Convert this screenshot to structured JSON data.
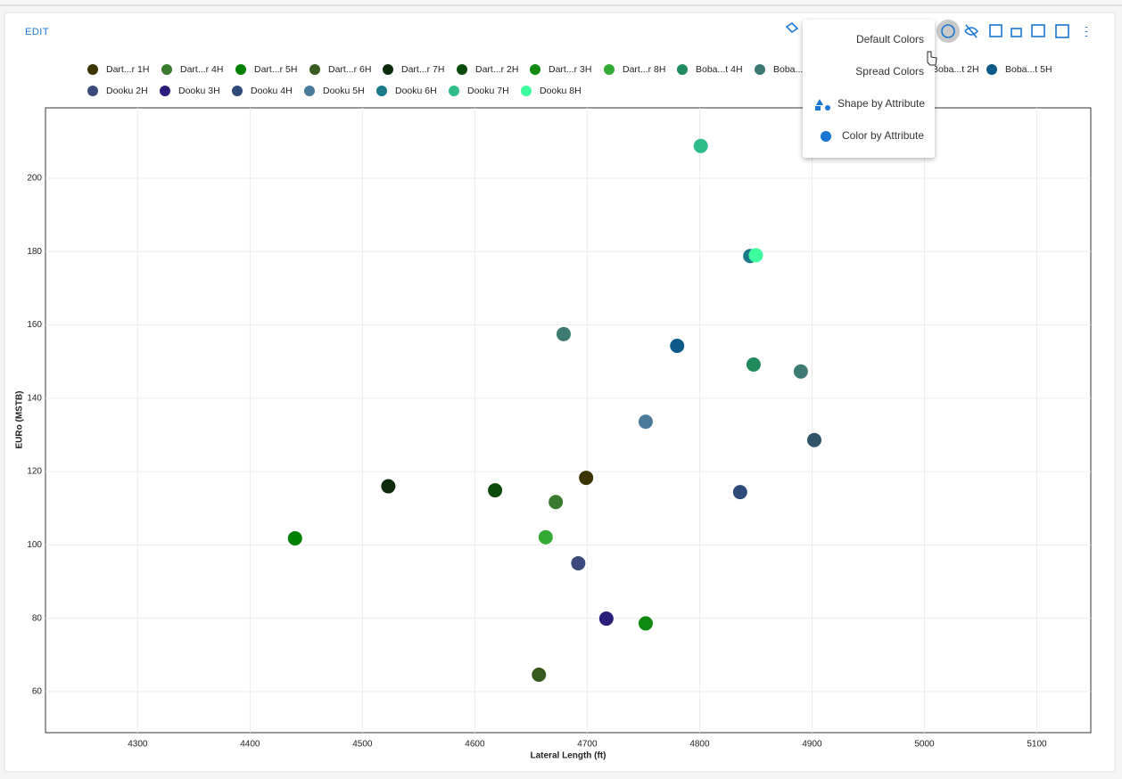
{
  "toolbar": {
    "edit": "EDIT"
  },
  "menu": {
    "items": [
      "Default Colors",
      "Spread Colors",
      "Shape by Attribute",
      "Color by Attribute"
    ]
  },
  "chart_data": {
    "type": "scatter",
    "xlabel": "Lateral Length (ft)",
    "ylabel": "EURo (MSTB)",
    "xlim": [
      4218,
      5148
    ],
    "ylim": [
      48.8,
      219.2
    ],
    "xticks": [
      4300,
      4400,
      4500,
      4600,
      4700,
      4800,
      4900,
      5000,
      5100
    ],
    "yticks": [
      60,
      80,
      100,
      120,
      140,
      160,
      180,
      200
    ],
    "grid": true,
    "series": [
      {
        "name": "Dart...r 1H",
        "color": "#3b3300",
        "x": [
          4699
        ],
        "values": [
          118.3
        ]
      },
      {
        "name": "Dart...r 4H",
        "color": "#3a7a2e",
        "x": [
          4672
        ],
        "values": [
          111.7
        ]
      },
      {
        "name": "Dart...r 5H",
        "color": "#008000",
        "x": [
          4440
        ],
        "values": [
          101.8
        ]
      },
      {
        "name": "Dart...r 6H",
        "color": "#375a1e",
        "x": [
          4657
        ],
        "values": [
          64.6
        ]
      },
      {
        "name": "Dart...r 7H",
        "color": "#0d2a0d",
        "x": [
          4523
        ],
        "values": [
          116.0
        ]
      },
      {
        "name": "Dart...r 2H",
        "color": "#0a4a0a",
        "x": [
          4618
        ],
        "values": [
          114.9
        ]
      },
      {
        "name": "Dart...r 3H",
        "color": "#0e8a10",
        "x": [
          4752
        ],
        "values": [
          78.6
        ]
      },
      {
        "name": "Dart...r 8H",
        "color": "#33aa33",
        "x": [
          4663
        ],
        "values": [
          102.1
        ]
      },
      {
        "name": "Boba...t 4H",
        "color": "#1f8a5c",
        "x": [
          4848
        ],
        "values": [
          149.2
        ]
      },
      {
        "name": "Boba...t 3H",
        "color": "#3d7a73",
        "x": [
          4679,
          4890
        ],
        "values": [
          157.5,
          147.3
        ]
      },
      {
        "name": "Boba...t 2H",
        "color": "#2f5468",
        "x": [
          4902
        ],
        "values": [
          128.6
        ]
      },
      {
        "name": "Boba...t 5H",
        "color": "#0d5a8a",
        "x": [
          4780
        ],
        "values": [
          154.3
        ]
      },
      {
        "name": "Dooku 2H",
        "color": "#3b4a7a",
        "x": [
          4692
        ],
        "values": [
          95.0
        ]
      },
      {
        "name": "Dooku 3H",
        "color": "#2a1e7a",
        "x": [
          4717
        ],
        "values": [
          79.9
        ]
      },
      {
        "name": "Dooku 4H",
        "color": "#2e4a7a",
        "x": [
          4836
        ],
        "values": [
          114.4
        ]
      },
      {
        "name": "Dooku 5H",
        "color": "#4a7a99",
        "x": [
          4752
        ],
        "values": [
          133.6
        ]
      },
      {
        "name": "Dooku 6H",
        "color": "#1a7a8a",
        "x": [
          4845
        ],
        "values": [
          178.8
        ]
      },
      {
        "name": "Dooku 7H",
        "color": "#2ebd8a",
        "x": [
          4801
        ],
        "values": [
          208.8
        ]
      },
      {
        "name": "Dooku 8H",
        "color": "#3dff9e",
        "x": [
          4850
        ],
        "values": [
          179.0
        ]
      }
    ]
  }
}
